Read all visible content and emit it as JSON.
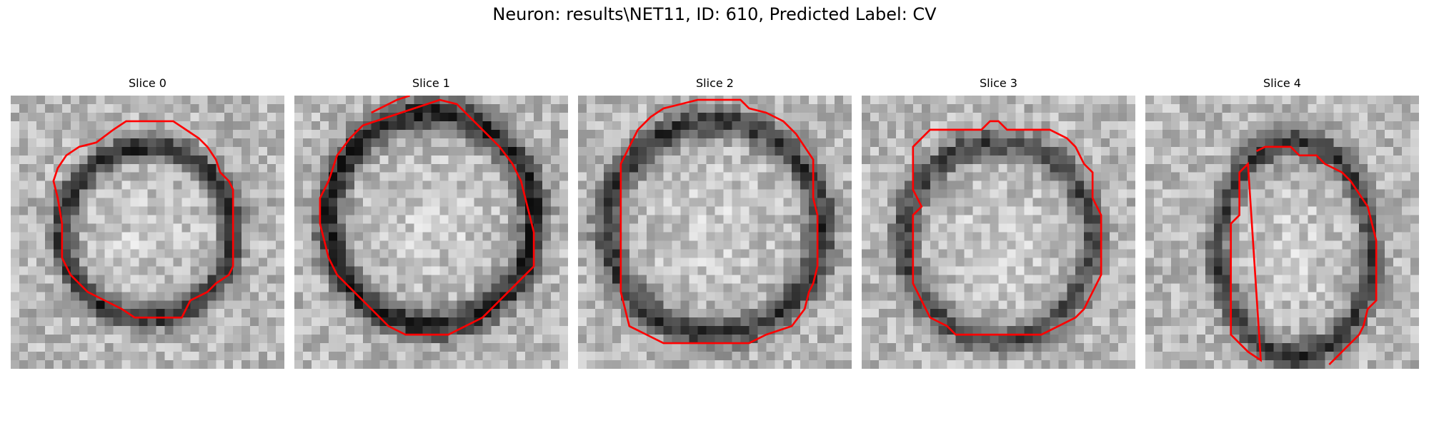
{
  "title": "Neuron: results\\NET11, ID: 610, Predicted Label: CV",
  "slices": [
    {
      "label": "Slice 0"
    },
    {
      "label": "Slice 1"
    },
    {
      "label": "Slice 2"
    },
    {
      "label": "Slice 3"
    },
    {
      "label": "Slice 4"
    }
  ],
  "colors": {
    "contour": "#ff0000",
    "background": "#ffffff"
  }
}
